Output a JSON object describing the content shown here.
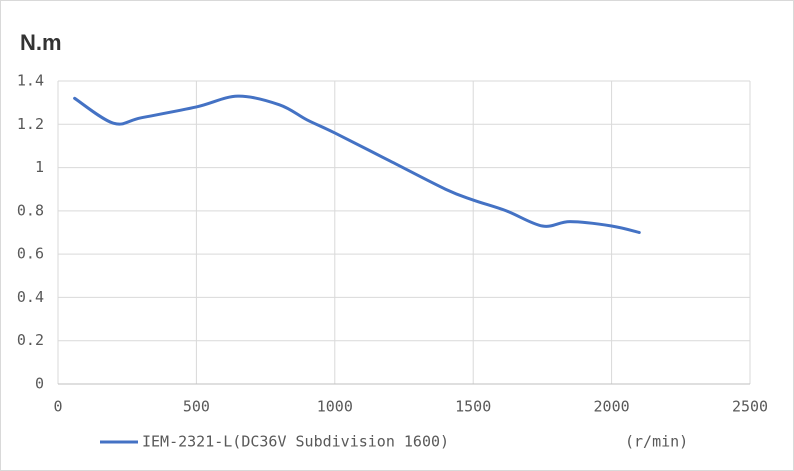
{
  "chart_data": {
    "type": "line",
    "y_label": "N.m",
    "x_label": "(r/min)",
    "x": [
      60,
      200,
      300,
      500,
      650,
      800,
      900,
      1000,
      1200,
      1400,
      1500,
      1620,
      1750,
      1850,
      2000,
      2100
    ],
    "series": [
      {
        "name": "IEM-2321-L(DC36V Subdivision 1600)",
        "color": "#4472c4",
        "values": [
          1.32,
          1.205,
          1.23,
          1.28,
          1.33,
          1.29,
          1.22,
          1.16,
          1.03,
          0.9,
          0.85,
          0.8,
          0.73,
          0.75,
          0.73,
          0.7
        ]
      }
    ],
    "xlim": [
      0,
      2500
    ],
    "xticks": [
      0,
      500,
      1000,
      1500,
      2000,
      2500
    ],
    "ylim": [
      0,
      1.4
    ],
    "yticks": [
      0,
      0.2,
      0.4,
      0.6,
      0.8,
      1,
      1.2,
      1.4
    ],
    "grid": true
  }
}
